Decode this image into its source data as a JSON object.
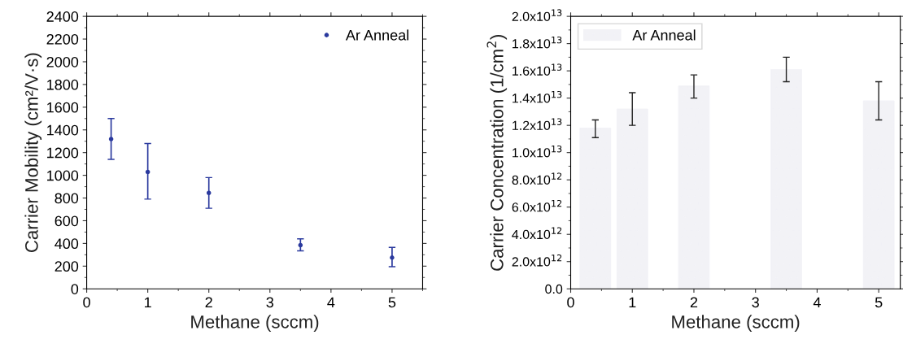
{
  "chart_data": [
    {
      "type": "scatter",
      "xlabel": "Methane (sccm)",
      "ylabel": "Carrier Mobility (cm²/V·s)",
      "x": [
        0.4,
        1,
        2,
        3.5,
        5
      ],
      "series": [
        {
          "name": "Ar Anneal",
          "color": "#2b3a9e",
          "values": [
            1320,
            1030,
            845,
            385,
            275
          ],
          "errors": [
            [
              1140,
              1500
            ],
            [
              790,
              1280
            ],
            [
              710,
              980
            ],
            [
              335,
              440
            ],
            [
              195,
              365
            ]
          ]
        }
      ],
      "xlim": [
        0,
        5.5
      ],
      "xticks": [
        0,
        1,
        2,
        3,
        4,
        5
      ],
      "ylim": [
        0,
        2400
      ],
      "yticks": [
        0,
        200,
        400,
        600,
        800,
        1000,
        1200,
        1400,
        1600,
        1800,
        2000,
        2200,
        2400
      ],
      "marker": "circle",
      "legend": "top right",
      "grid": false
    },
    {
      "type": "bar",
      "xlabel": "Methane (sccm)",
      "ylabel": "Carrier Concentration (1/cm$^{2}$)",
      "x": [
        0.4,
        1,
        2,
        3.5,
        5
      ],
      "series": [
        {
          "name": "Ar Anneal",
          "color": "#f2f2f6",
          "values": [
            11800000000000.0,
            13200000000000.0,
            14900000000000.0,
            16100000000000.0,
            13800000000000.0
          ],
          "errors": [
            [
              11100000000000.0,
              12400000000000.0
            ],
            [
              12000000000000.0,
              14400000000000.0
            ],
            [
              14000000000000.0,
              15700000000000.0
            ],
            [
              15200000000000.0,
              17000000000000.0
            ],
            [
              12400000000000.0,
              15200000000000.0
            ]
          ]
        }
      ],
      "xlim": [
        0,
        5.35
      ],
      "xticks": [
        0,
        1,
        2,
        3,
        4,
        5
      ],
      "ylim": [
        0,
        20000000000000.0
      ],
      "yticks": [
        {
          "value": 0,
          "label": "0.0"
        },
        {
          "value": 2000000000000.0,
          "label": "2.0x10$^{12}$"
        },
        {
          "value": 4000000000000.0,
          "label": "4.0x10$^{12}$"
        },
        {
          "value": 6000000000000.0,
          "label": "6.0x10$^{12}$"
        },
        {
          "value": 8000000000000.0,
          "label": "8.0x10$^{12}$"
        },
        {
          "value": 10000000000000.0,
          "label": "1.0x10$^{13}$"
        },
        {
          "value": 12000000000000.0,
          "label": "1.2x10$^{13}$"
        },
        {
          "value": 14000000000000.0,
          "label": "1.4x10$^{13}$"
        },
        {
          "value": 16000000000000.0,
          "label": "1.6x10$^{13}$"
        },
        {
          "value": 18000000000000.0,
          "label": "1.8x10$^{13}$"
        },
        {
          "value": 20000000000000.0,
          "label": "2.0x10$^{13}$"
        }
      ],
      "legend": "top left",
      "grid": false
    }
  ]
}
